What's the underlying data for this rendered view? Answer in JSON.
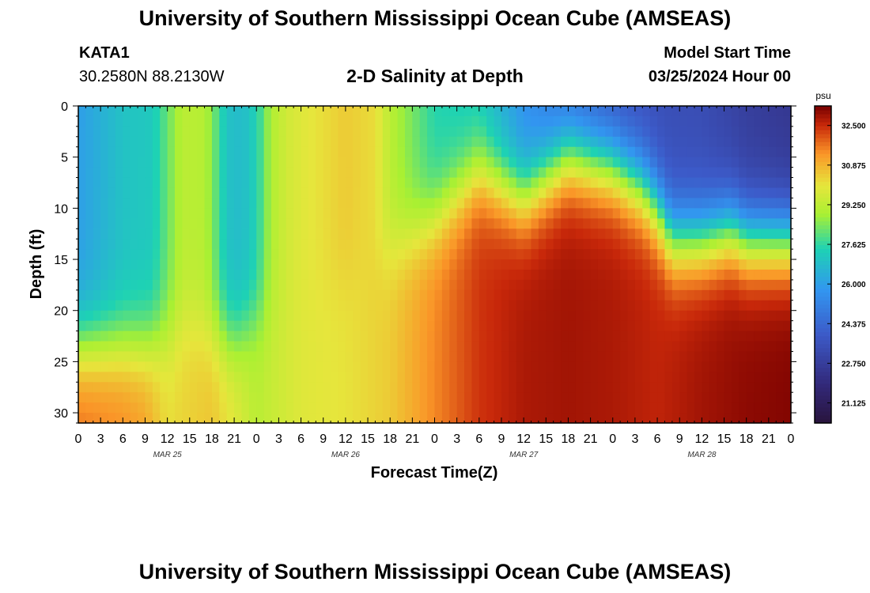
{
  "header": {
    "title": "University of Southern Mississippi Ocean Cube (AMSEAS)",
    "station": "KATA1",
    "coordinates": "30.2580N  88.2130W",
    "subtitle": "2-D Salinity at Depth",
    "model_start_label": "Model Start Time",
    "model_start_value": "03/25/2024 Hour 00"
  },
  "footer": {
    "title": "University of Southern Mississippi Ocean Cube (AMSEAS)"
  },
  "chart_data": {
    "type": "heatmap",
    "title": "2-D Salinity at Depth",
    "xlabel": "Forecast Time(Z)",
    "ylabel": "Depth (ft)",
    "x_tick_labels": [
      "0",
      "3",
      "6",
      "9",
      "12",
      "15",
      "18",
      "21",
      "0",
      "3",
      "6",
      "9",
      "12",
      "15",
      "18",
      "21",
      "0",
      "3",
      "6",
      "9",
      "12",
      "15",
      "18",
      "21",
      "0",
      "3",
      "6",
      "9",
      "12",
      "15",
      "18",
      "21",
      "0"
    ],
    "date_labels": [
      {
        "label": "MAR 25",
        "hour": 12
      },
      {
        "label": "MAR 26",
        "hour": 36
      },
      {
        "label": "MAR 27",
        "hour": 60
      },
      {
        "label": "MAR 28",
        "hour": 84
      }
    ],
    "x_range_hours": [
      0,
      96
    ],
    "y_ticks": [
      0,
      5,
      10,
      15,
      20,
      25,
      30
    ],
    "y_range_ft": [
      0,
      31
    ],
    "colorbar": {
      "unit": "psu",
      "tick_values": [
        32.5,
        30.875,
        29.25,
        27.625,
        26.0,
        24.375,
        22.75,
        21.125
      ],
      "tick_labels": [
        "32.500",
        "30.875",
        "29.250",
        "27.625",
        "26.000",
        "24.375",
        "22.750",
        "21.125"
      ],
      "range": [
        20.3,
        33.3
      ]
    },
    "surface_salinity_psu": {
      "hours": [
        0,
        6,
        10,
        12,
        14,
        17,
        18,
        20,
        22,
        24,
        26,
        28,
        30,
        36,
        40,
        42,
        48,
        54,
        60,
        66,
        72,
        78,
        84,
        88,
        90,
        96
      ],
      "values": [
        26.0,
        27.0,
        27.2,
        28.2,
        29.2,
        29.1,
        28.5,
        27.0,
        26.8,
        27.4,
        29.0,
        29.6,
        29.9,
        30.5,
        30.2,
        29.2,
        27.5,
        27.2,
        25.6,
        24.5,
        23.8,
        23.5,
        23.4,
        23.0,
        22.8,
        22.5
      ]
    },
    "bottom_salinity_psu": {
      "hours": [
        0,
        6,
        9,
        12,
        15,
        18,
        21,
        24,
        30,
        36,
        42,
        48,
        54,
        60,
        66,
        72,
        78,
        84,
        90,
        96
      ],
      "values": [
        31.8,
        31.5,
        31.2,
        30.2,
        30.4,
        30.6,
        30.0,
        29.2,
        29.9,
        30.1,
        30.5,
        31.5,
        32.4,
        32.8,
        32.9,
        32.8,
        32.6,
        32.9,
        33.1,
        33.2
      ]
    },
    "halocline_depth_ft": {
      "hours": [
        0,
        9,
        12,
        15,
        18,
        21,
        24,
        30,
        36,
        42,
        48,
        54,
        60,
        66,
        72,
        76,
        78,
        80,
        84,
        88,
        90,
        96
      ],
      "values": [
        23.5,
        23.5,
        22.5,
        21,
        22,
        23,
        21,
        19,
        17,
        14,
        11,
        6.5,
        9,
        5,
        6,
        8,
        10,
        13,
        13,
        12,
        13,
        13
      ]
    }
  }
}
